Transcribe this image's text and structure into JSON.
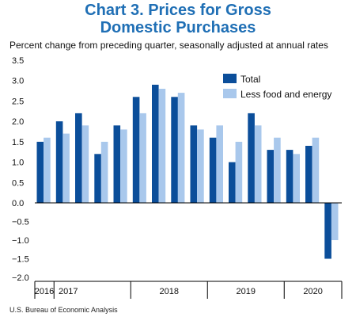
{
  "title_line1": "Chart 3. Prices for Gross",
  "title_line2": "Domestic Purchases",
  "subtitle": "Percent change from preceding quarter, seasonally adjusted at annual rates",
  "source": "U.S. Bureau of Economic Analysis",
  "chart_data": {
    "type": "bar",
    "ylim": [
      -2.0,
      3.5
    ],
    "yticks": [
      "3.5",
      "3.0",
      "2.5",
      "2.0",
      "1.5",
      "1.0",
      "0.5",
      "0.0",
      "−0.5",
      "−1.0",
      "−1.5",
      "−2.0"
    ],
    "grid": false,
    "legend_position": "top-right",
    "years": [
      "2016",
      "2017",
      "2018",
      "2019",
      "2020"
    ],
    "series": [
      {
        "name": "Total",
        "color": "#0b4e9a",
        "values": [
          1.5,
          2.0,
          2.2,
          1.2,
          1.9,
          2.6,
          2.9,
          2.6,
          1.9,
          1.6,
          1.0,
          2.2,
          1.3,
          1.3,
          1.4,
          -1.5
        ]
      },
      {
        "name": "Less food and energy",
        "color": "#a9c8ec",
        "values": [
          1.6,
          1.7,
          1.9,
          1.5,
          1.8,
          2.2,
          2.8,
          2.7,
          1.8,
          1.9,
          1.5,
          1.9,
          1.6,
          1.2,
          1.6,
          -1.0
        ]
      }
    ]
  }
}
